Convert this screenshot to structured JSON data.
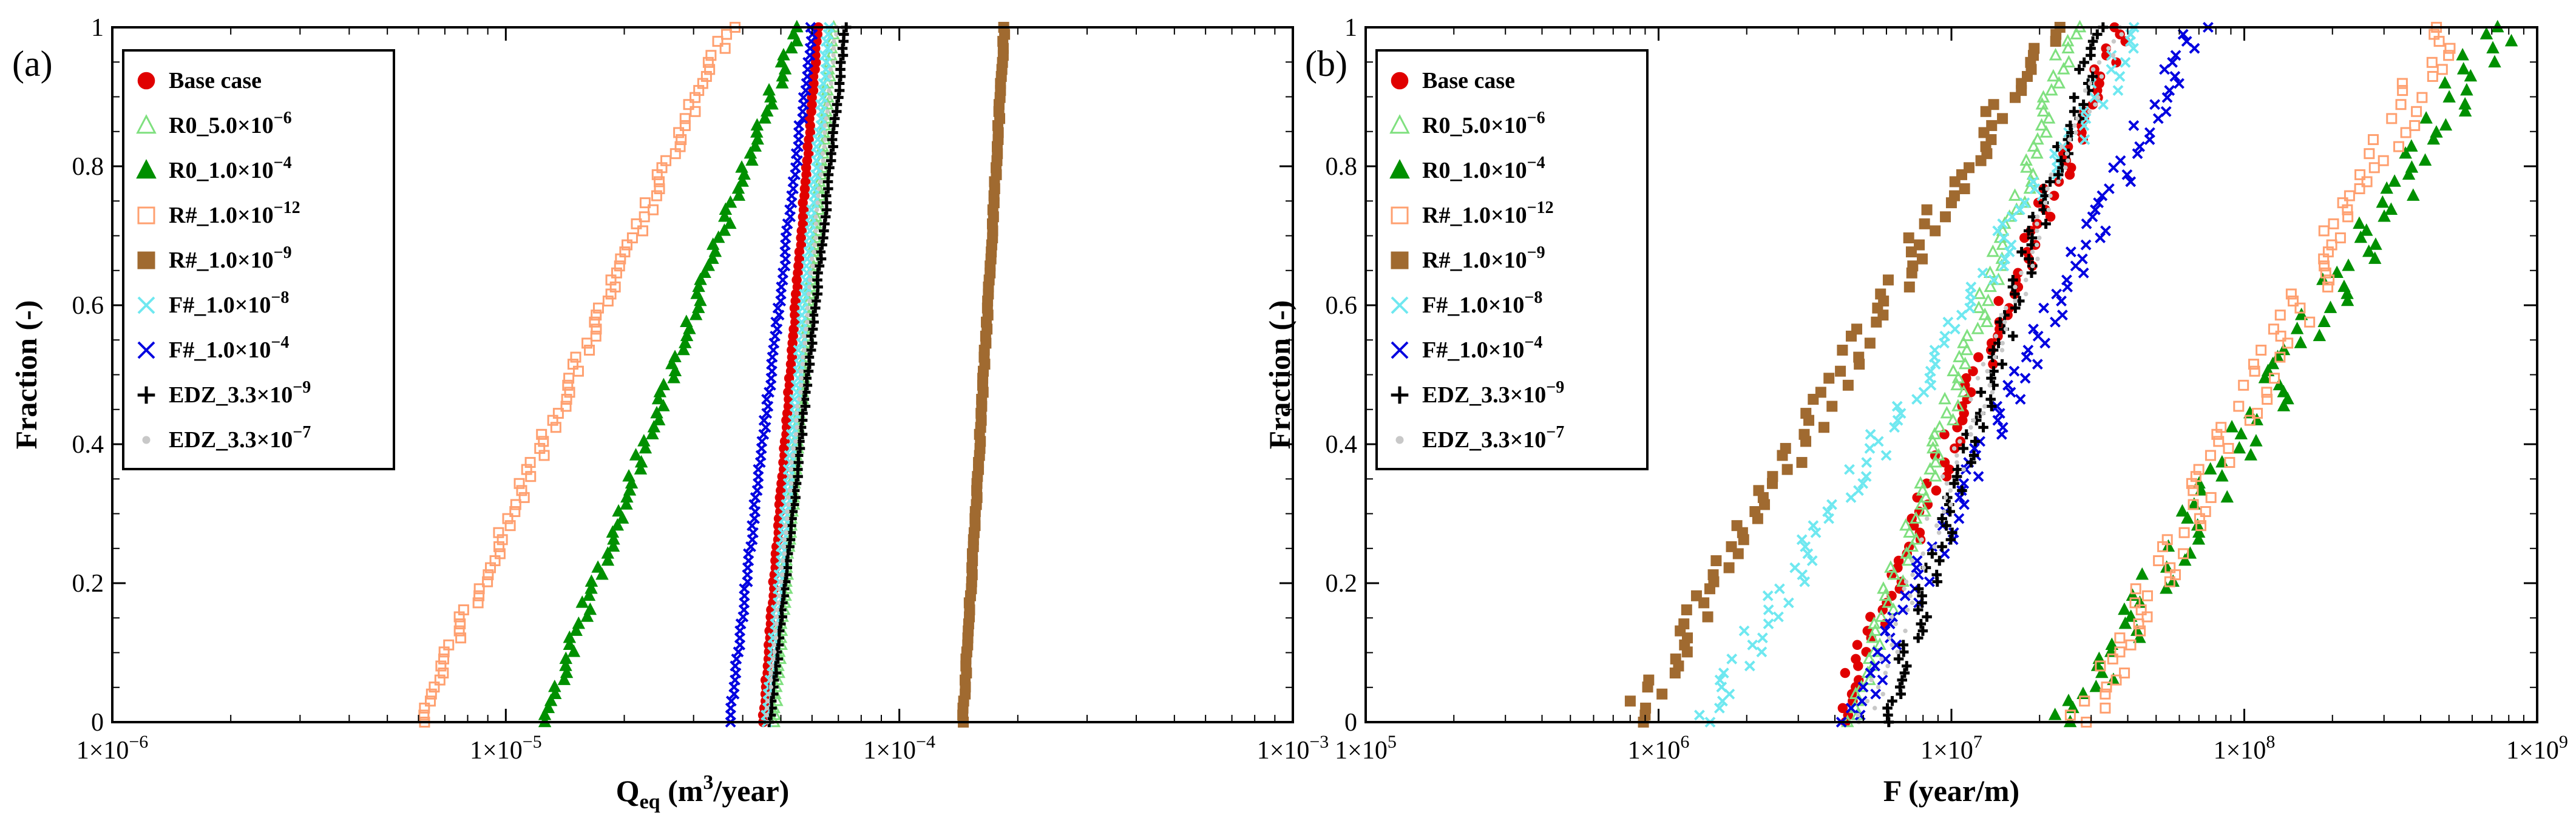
{
  "chart_data": [
    {
      "type": "scatter",
      "panel_label": "(a)",
      "xscale": "log",
      "xlim": [
        1e-06,
        0.001
      ],
      "ylim": [
        0,
        1
      ],
      "xticks": [
        1e-06,
        1e-05,
        0.0001,
        0.001
      ],
      "xtick_mant": [
        "1",
        "1",
        "1",
        "1"
      ],
      "xtick_exp": [
        "−6",
        "−5",
        "−4",
        "−3"
      ],
      "yticks": [
        0,
        0.2,
        0.4,
        0.6,
        0.8,
        1
      ],
      "ytick_labels": [
        "0",
        "0.2",
        "0.4",
        "0.6",
        "0.8",
        "1"
      ],
      "xlabel": {
        "main": "Q",
        "sub": "eq",
        "unit_pre": " (m",
        "unit_sup": "3",
        "unit_post": "/year)"
      },
      "ylabel": "Fraction (-)",
      "legend_position": "top-left",
      "n_points_per_series": 100,
      "series": [
        {
          "name": "Base case",
          "marker": "circle-filled",
          "color": "#e00000",
          "min": 4.5e-05,
          "max": 6.2e-05,
          "jitter": 0.012
        },
        {
          "name": "R0_5.0",
          "marker": "triangle-open",
          "color": "#7fe07f",
          "min": 4.8e-05,
          "max": 6.8e-05,
          "jitter": 0.015
        },
        {
          "name": "R0_1.0",
          "marker": "triangle-filled",
          "color": "#009000",
          "min": 1.25e-05,
          "max": 5.5e-05,
          "jitter": 0.03
        },
        {
          "name": "R#_1.0",
          "marker": "square-open",
          "color": "#ffa070",
          "min": 6e-06,
          "max": 3.7e-05,
          "jitter": 0.03
        },
        {
          "name": "R#_1.0",
          "marker": "square-filled",
          "color": "#a06a30",
          "min": 0.000145,
          "max": 0.000185,
          "jitter": 0.01
        },
        {
          "name": "F#_1.0",
          "marker": "x",
          "color": "#6fe8f0",
          "min": 4.6e-05,
          "max": 6.6e-05,
          "jitter": 0.015
        },
        {
          "name": "F#_1.0",
          "marker": "x",
          "color": "#0000e0",
          "min": 3.7e-05,
          "max": 6e-05,
          "jitter": 0.015
        },
        {
          "name": "EDZ_3.3",
          "marker": "plus",
          "color": "#000000",
          "min": 4.7e-05,
          "max": 7.3e-05,
          "jitter": 0.012
        },
        {
          "name": "EDZ_3.3",
          "marker": "dot",
          "color": "#c8c8c8",
          "min": 4.6e-05,
          "max": 6.9e-05,
          "jitter": 0.012
        }
      ]
    },
    {
      "type": "scatter",
      "panel_label": "(b)",
      "xscale": "log",
      "xlim": [
        100000.0,
        1000000000.0
      ],
      "ylim": [
        0,
        1
      ],
      "xticks": [
        100000.0,
        1000000.0,
        10000000.0,
        100000000.0,
        1000000000.0
      ],
      "xtick_mant": [
        "1",
        "1",
        "1",
        "1",
        "1"
      ],
      "xtick_exp": [
        "5",
        "6",
        "7",
        "8",
        "9"
      ],
      "yticks": [
        0,
        0.2,
        0.4,
        0.6,
        0.8,
        1
      ],
      "ytick_labels": [
        "0",
        "0.2",
        "0.4",
        "0.6",
        "0.8",
        "1"
      ],
      "xlabel": {
        "main": "F (year/m)"
      },
      "ylabel": "Fraction (-)",
      "legend_position": "top-left",
      "n_points_per_series": 100,
      "series": [
        {
          "name": "Base case",
          "marker": "circle-filled",
          "color": "#e00000",
          "min": 4000000.0,
          "max": 38000000.0,
          "jitter": 0.06
        },
        {
          "name": "R0_5.0",
          "marker": "triangle-open",
          "color": "#7fe07f",
          "min": 4500000.0,
          "max": 26000000.0,
          "jitter": 0.06
        },
        {
          "name": "R0_1.0",
          "marker": "triangle-filled",
          "color": "#009000",
          "min": 25000000.0,
          "max": 750000000.0,
          "jitter": 0.08
        },
        {
          "name": "R#_1.0",
          "marker": "square-open",
          "color": "#ffa070",
          "min": 28000000.0,
          "max": 500000000.0,
          "jitter": 0.08
        },
        {
          "name": "R#_1.0",
          "marker": "square-filled",
          "color": "#a06a30",
          "min": 800000.0,
          "max": 22000000.0,
          "jitter": 0.06
        },
        {
          "name": "F#_1.0",
          "marker": "x",
          "color": "#6fe8f0",
          "min": 1400000.0,
          "max": 45000000.0,
          "jitter": 0.06
        },
        {
          "name": "F#_1.0",
          "marker": "x",
          "color": "#0000e0",
          "min": 4500000.0,
          "max": 68000000.0,
          "jitter": 0.06
        },
        {
          "name": "EDZ_3.3",
          "marker": "plus",
          "color": "#000000",
          "min": 6000000.0,
          "max": 32000000.0,
          "jitter": 0.06
        },
        {
          "name": "EDZ_3.3",
          "marker": "dot",
          "color": "#c8c8c8",
          "min": 5000000.0,
          "max": 36000000.0,
          "jitter": 0.06
        }
      ]
    }
  ],
  "legend": {
    "entries": [
      {
        "prefix": "Base case",
        "mantissa": "",
        "exponent": "",
        "marker": "circle-filled",
        "color": "#e00000"
      },
      {
        "prefix": "R0_5.0",
        "mantissa": "10",
        "exponent": "−6",
        "marker": "triangle-open",
        "color": "#7fe07f"
      },
      {
        "prefix": "R0_1.0",
        "mantissa": "10",
        "exponent": "−4",
        "marker": "triangle-filled",
        "color": "#009000"
      },
      {
        "prefix": "R#_1.0",
        "mantissa": "10",
        "exponent": "−12",
        "marker": "square-open",
        "color": "#ffa070"
      },
      {
        "prefix": "R#_1.0",
        "mantissa": "10",
        "exponent": "−9",
        "marker": "square-filled",
        "color": "#a06a30"
      },
      {
        "prefix": "F#_1.0",
        "mantissa": "10",
        "exponent": "−8",
        "marker": "x",
        "color": "#6fe8f0"
      },
      {
        "prefix": "F#_1.0",
        "mantissa": "10",
        "exponent": "−4",
        "marker": "x",
        "color": "#0000e0"
      },
      {
        "prefix": "EDZ_3.3",
        "mantissa": "10",
        "exponent": "−9",
        "marker": "plus",
        "color": "#000000"
      },
      {
        "prefix": "EDZ_3.3",
        "mantissa": "10",
        "exponent": "−7",
        "marker": "dot",
        "color": "#c8c8c8"
      }
    ]
  }
}
